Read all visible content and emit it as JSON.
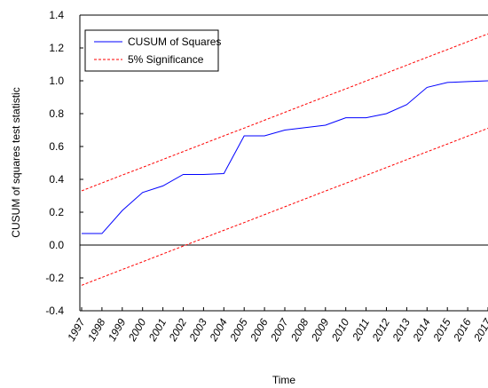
{
  "chart_data": {
    "type": "line",
    "y_label": "CUSUM of squares test statistic",
    "x_label": "Time",
    "categories": [
      "1997",
      "1998",
      "1999",
      "2000",
      "2001",
      "2002",
      "2003",
      "2004",
      "2005",
      "2006",
      "2007",
      "2008",
      "2009",
      "2010",
      "2011",
      "2012",
      "2013",
      "2014",
      "2015",
      "2016",
      "2017"
    ],
    "series": [
      {
        "name": "CUSUM of Squares",
        "color": "#0000ff",
        "dashed": false,
        "values": [
          0.07,
          0.07,
          0.21,
          0.32,
          0.36,
          0.43,
          0.43,
          0.435,
          0.665,
          0.665,
          0.7,
          0.715,
          0.73,
          0.775,
          0.775,
          0.8,
          0.855,
          0.96,
          0.99,
          0.995,
          1.0
        ]
      }
    ],
    "bands": {
      "name": "5% Significance",
      "color": "#ff0000",
      "dashed": true,
      "upper": [
        0.33,
        0.378,
        0.426,
        0.473,
        0.521,
        0.569,
        0.617,
        0.665,
        0.712,
        0.76,
        0.808,
        0.856,
        0.904,
        0.951,
        0.999,
        1.047,
        1.095,
        1.143,
        1.19,
        1.238,
        1.286
      ],
      "lower": [
        -0.245,
        -0.197,
        -0.149,
        -0.102,
        -0.054,
        -0.006,
        0.042,
        0.09,
        0.137,
        0.185,
        0.233,
        0.281,
        0.329,
        0.376,
        0.424,
        0.472,
        0.52,
        0.568,
        0.615,
        0.663,
        0.711
      ]
    },
    "ylim": [
      -0.4,
      1.4
    ],
    "yticks": [
      -0.4,
      -0.2,
      {
        "value": 0,
        "label": "0.0"
      },
      0.2,
      0.4,
      0.6,
      0.8,
      {
        "value": 1,
        "label": "1.0"
      },
      1.2,
      1.4
    ],
    "zero_line": true,
    "legend": "upper-left"
  }
}
